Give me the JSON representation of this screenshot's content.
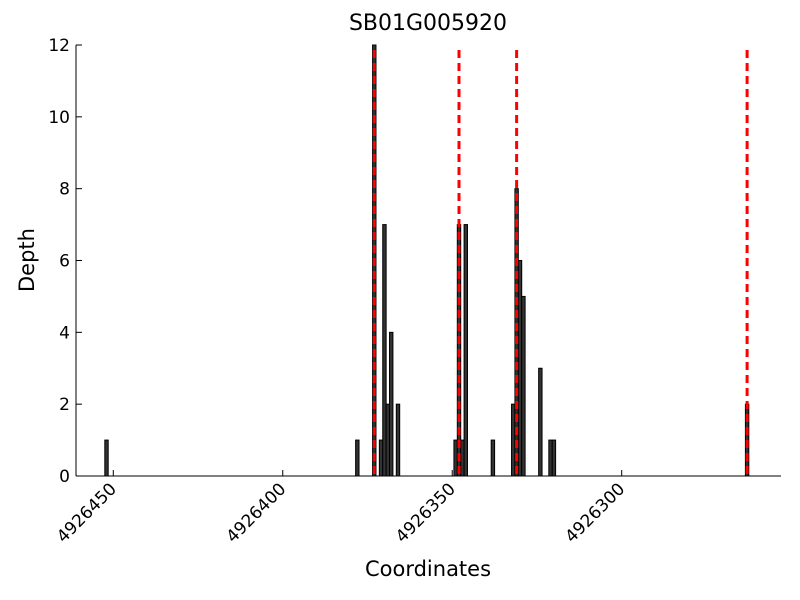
{
  "chart_data": {
    "type": "bar",
    "title": "SB01G005920",
    "x_label": "Coordinates",
    "y_label": "Depth",
    "x": [
      4926452,
      4926378,
      4926373,
      4926371,
      4926370,
      4926369,
      4926368,
      4926366,
      4926349,
      4926348,
      4926347,
      4926346,
      4926338,
      4926332,
      4926331,
      4926330,
      4926329,
      4926324,
      4926321,
      4926320,
      4926263
    ],
    "values": [
      1,
      1,
      12,
      1,
      7,
      2,
      4,
      2,
      1,
      7,
      1,
      7,
      1,
      2,
      8,
      6,
      5,
      3,
      1,
      1,
      2
    ],
    "color": "#333333",
    "vlines": {
      "values": [
        4926373,
        4926348,
        4926331,
        4926263
      ],
      "color": "#ff0000"
    },
    "xlim": [
      4926461,
      4926253
    ],
    "xticks": [
      4926450,
      4926400,
      4926350,
      4926300
    ],
    "ylim": [
      0,
      12
    ],
    "yticks": [
      0,
      2,
      4,
      6,
      8,
      10,
      12
    ]
  }
}
